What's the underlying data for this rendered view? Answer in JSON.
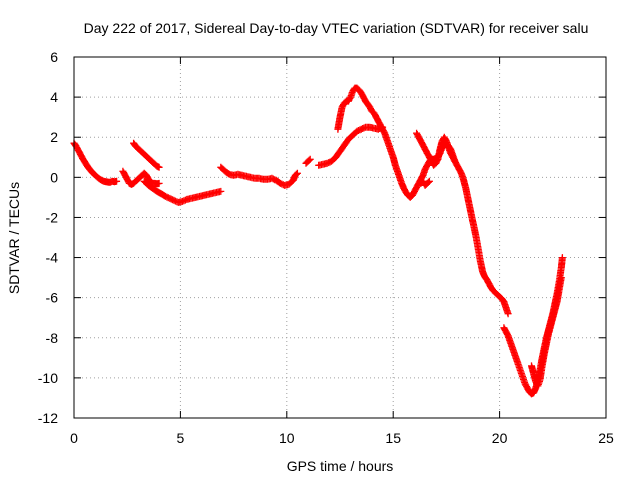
{
  "chart_data": {
    "type": "scatter",
    "title": "Day 222 of 2017, Sidereal Day-to-day VTEC variation (SDTVAR) for receiver salu",
    "xlabel": "GPS time / hours",
    "ylabel": "SDTVAR / TECUs",
    "xlim": [
      0,
      25
    ],
    "ylim": [
      -12,
      6
    ],
    "xticks": [
      0,
      5,
      10,
      15,
      20,
      25
    ],
    "yticks": [
      -12,
      -10,
      -8,
      -6,
      -4,
      -2,
      0,
      2,
      4,
      6
    ],
    "xtick_labels": [
      "0",
      "5",
      "10",
      "15",
      "20",
      "25"
    ],
    "ytick_labels": [
      "-12",
      "-10",
      "-8",
      "-6",
      "-4",
      "-2",
      "0",
      "2",
      "4",
      "6"
    ],
    "grid": true,
    "legend": "none",
    "marker": "plus",
    "color": "#ff0000",
    "series": [
      {
        "points": [
          [
            0.0,
            1.7
          ],
          [
            0.1,
            1.55
          ],
          [
            0.2,
            1.35
          ],
          [
            0.3,
            1.15
          ],
          [
            0.4,
            0.95
          ],
          [
            0.5,
            0.78
          ],
          [
            0.6,
            0.6
          ],
          [
            0.7,
            0.45
          ],
          [
            0.8,
            0.32
          ],
          [
            0.9,
            0.2
          ],
          [
            1.0,
            0.1
          ],
          [
            1.1,
            0.0
          ],
          [
            1.2,
            -0.08
          ],
          [
            1.3,
            -0.15
          ],
          [
            1.4,
            -0.2
          ],
          [
            1.5,
            -0.22
          ],
          [
            1.6,
            -0.24
          ],
          [
            1.7,
            -0.25
          ],
          [
            1.8,
            -0.2
          ],
          [
            1.9,
            -0.22
          ],
          [
            2.0,
            -0.2
          ]
        ]
      },
      {
        "points": [
          [
            2.3,
            0.3
          ],
          [
            2.4,
            0.1
          ],
          [
            2.5,
            -0.1
          ],
          [
            2.6,
            -0.3
          ],
          [
            2.7,
            -0.35
          ],
          [
            2.8,
            -0.3
          ],
          [
            2.9,
            -0.2
          ],
          [
            3.0,
            -0.1
          ],
          [
            3.1,
            0.0
          ],
          [
            3.2,
            0.1
          ],
          [
            3.3,
            0.2
          ],
          [
            3.4,
            0.1
          ],
          [
            3.5,
            -0.1
          ],
          [
            3.6,
            -0.25
          ],
          [
            3.7,
            -0.3
          ],
          [
            3.8,
            -0.3
          ],
          [
            3.9,
            -0.32
          ],
          [
            4.0,
            -0.3
          ]
        ]
      },
      {
        "points": [
          [
            2.8,
            1.7
          ],
          [
            2.9,
            1.55
          ],
          [
            3.0,
            1.45
          ],
          [
            3.1,
            1.35
          ],
          [
            3.2,
            1.25
          ],
          [
            3.3,
            1.15
          ],
          [
            3.4,
            1.05
          ],
          [
            3.5,
            0.95
          ],
          [
            3.6,
            0.85
          ],
          [
            3.7,
            0.75
          ],
          [
            3.8,
            0.65
          ],
          [
            3.9,
            0.55
          ],
          [
            4.0,
            0.5
          ]
        ]
      },
      {
        "points": [
          [
            3.3,
            -0.2
          ],
          [
            3.5,
            -0.4
          ],
          [
            3.7,
            -0.55
          ],
          [
            3.9,
            -0.7
          ],
          [
            4.1,
            -0.82
          ],
          [
            4.3,
            -0.95
          ],
          [
            4.5,
            -1.05
          ],
          [
            4.7,
            -1.15
          ],
          [
            4.9,
            -1.25
          ],
          [
            5.1,
            -1.2
          ],
          [
            5.3,
            -1.1
          ],
          [
            5.5,
            -1.05
          ],
          [
            5.7,
            -1.0
          ],
          [
            5.9,
            -0.95
          ],
          [
            6.1,
            -0.9
          ],
          [
            6.3,
            -0.85
          ],
          [
            6.5,
            -0.8
          ],
          [
            6.7,
            -0.75
          ],
          [
            6.9,
            -0.7
          ]
        ]
      },
      {
        "points": [
          [
            6.9,
            0.5
          ],
          [
            7.1,
            0.3
          ],
          [
            7.3,
            0.15
          ],
          [
            7.5,
            0.1
          ],
          [
            7.7,
            0.15
          ],
          [
            7.9,
            0.1
          ],
          [
            8.1,
            0.05
          ],
          [
            8.3,
            0.0
          ],
          [
            8.5,
            -0.05
          ],
          [
            8.7,
            -0.05
          ],
          [
            8.9,
            -0.1
          ],
          [
            9.1,
            -0.1
          ],
          [
            9.3,
            -0.05
          ],
          [
            9.5,
            -0.15
          ],
          [
            9.7,
            -0.3
          ],
          [
            9.9,
            -0.4
          ],
          [
            10.1,
            -0.35
          ],
          [
            10.3,
            -0.15
          ],
          [
            10.4,
            0.1
          ],
          [
            10.5,
            0.2
          ]
        ]
      },
      {
        "points": [
          [
            10.9,
            0.7
          ],
          [
            11.0,
            0.8
          ],
          [
            11.1,
            0.9
          ]
        ]
      },
      {
        "points": [
          [
            11.5,
            0.6
          ],
          [
            11.7,
            0.65
          ],
          [
            11.9,
            0.7
          ],
          [
            12.1,
            0.8
          ],
          [
            12.3,
            1.0
          ],
          [
            12.5,
            1.3
          ],
          [
            12.7,
            1.6
          ],
          [
            12.9,
            1.9
          ],
          [
            13.1,
            2.1
          ],
          [
            13.3,
            2.3
          ],
          [
            13.5,
            2.4
          ],
          [
            13.7,
            2.5
          ],
          [
            13.9,
            2.5
          ],
          [
            14.1,
            2.45
          ],
          [
            14.3,
            2.4
          ],
          [
            14.5,
            2.5
          ]
        ]
      },
      {
        "points": [
          [
            12.4,
            2.4
          ],
          [
            12.5,
            3.0
          ],
          [
            12.6,
            3.5
          ],
          [
            12.7,
            3.7
          ],
          [
            12.8,
            3.8
          ],
          [
            12.9,
            3.8
          ],
          [
            13.0,
            4.0
          ],
          [
            13.1,
            4.3
          ],
          [
            13.2,
            4.45
          ],
          [
            13.3,
            4.45
          ],
          [
            13.4,
            4.35
          ],
          [
            13.5,
            4.2
          ],
          [
            13.6,
            4.0
          ],
          [
            13.7,
            3.8
          ],
          [
            13.8,
            3.65
          ],
          [
            13.9,
            3.5
          ],
          [
            14.0,
            3.3
          ],
          [
            14.1,
            3.2
          ],
          [
            14.2,
            3.0
          ],
          [
            14.3,
            2.8
          ],
          [
            14.4,
            2.6
          ],
          [
            14.5,
            2.4
          ],
          [
            14.6,
            2.2
          ],
          [
            14.7,
            1.9
          ],
          [
            14.8,
            1.6
          ],
          [
            14.9,
            1.3
          ],
          [
            15.0,
            1.0
          ],
          [
            15.1,
            0.6
          ],
          [
            15.2,
            0.3
          ],
          [
            15.3,
            0.0
          ],
          [
            15.4,
            -0.3
          ],
          [
            15.5,
            -0.55
          ],
          [
            15.6,
            -0.75
          ],
          [
            15.7,
            -0.9
          ],
          [
            15.8,
            -1.0
          ],
          [
            15.9,
            -0.9
          ],
          [
            16.0,
            -0.7
          ],
          [
            16.1,
            -0.5
          ],
          [
            16.2,
            -0.3
          ],
          [
            16.3,
            -0.1
          ],
          [
            16.4,
            0.1
          ],
          [
            16.5,
            0.4
          ],
          [
            16.6,
            0.6
          ],
          [
            16.7,
            0.8
          ],
          [
            16.8,
            0.9
          ],
          [
            16.9,
            0.9
          ],
          [
            17.0,
            0.95
          ],
          [
            17.1,
            1.0
          ],
          [
            17.2,
            1.2
          ],
          [
            17.3,
            1.5
          ],
          [
            17.4,
            1.6
          ],
          [
            17.5,
            1.65
          ],
          [
            17.6,
            1.55
          ],
          [
            17.7,
            1.4
          ],
          [
            17.8,
            1.1
          ],
          [
            17.9,
            0.8
          ],
          [
            18.0,
            0.6
          ],
          [
            18.1,
            0.4
          ],
          [
            18.2,
            0.2
          ],
          [
            18.3,
            -0.1
          ],
          [
            18.4,
            -0.5
          ],
          [
            18.5,
            -1.0
          ],
          [
            18.6,
            -1.5
          ],
          [
            18.7,
            -2.0
          ],
          [
            18.8,
            -2.5
          ],
          [
            18.9,
            -3.0
          ],
          [
            19.0,
            -3.6
          ],
          [
            19.1,
            -4.2
          ],
          [
            19.2,
            -4.7
          ],
          [
            19.3,
            -4.95
          ],
          [
            19.4,
            -5.1
          ],
          [
            19.5,
            -5.3
          ],
          [
            19.6,
            -5.5
          ],
          [
            19.7,
            -5.65
          ],
          [
            19.8,
            -5.75
          ],
          [
            19.9,
            -5.85
          ],
          [
            20.0,
            -5.95
          ],
          [
            20.1,
            -6.05
          ],
          [
            20.2,
            -6.2
          ],
          [
            20.3,
            -6.5
          ],
          [
            20.4,
            -6.8
          ]
        ]
      },
      {
        "points": [
          [
            16.1,
            2.2
          ],
          [
            16.2,
            2.0
          ],
          [
            16.3,
            1.8
          ],
          [
            16.4,
            1.6
          ],
          [
            16.5,
            1.4
          ],
          [
            16.6,
            1.2
          ],
          [
            16.7,
            1.0
          ],
          [
            16.8,
            0.8
          ],
          [
            16.9,
            0.6
          ],
          [
            17.0,
            0.7
          ],
          [
            17.1,
            0.9
          ],
          [
            17.2,
            1.4
          ],
          [
            17.3,
            1.8
          ],
          [
            17.4,
            2.0
          ],
          [
            17.5,
            1.8
          ],
          [
            17.6,
            1.5
          ],
          [
            17.7,
            1.2
          ],
          [
            17.8,
            1.0
          ],
          [
            17.9,
            0.8
          ]
        ]
      },
      {
        "points": [
          [
            16.3,
            -0.3
          ],
          [
            16.4,
            -0.2
          ],
          [
            16.5,
            -0.4
          ],
          [
            16.6,
            -0.3
          ],
          [
            16.7,
            -0.2
          ]
        ]
      },
      {
        "points": [
          [
            20.2,
            -7.5
          ],
          [
            20.3,
            -7.7
          ],
          [
            20.4,
            -7.9
          ],
          [
            20.5,
            -8.2
          ],
          [
            20.6,
            -8.5
          ],
          [
            20.7,
            -8.8
          ],
          [
            20.8,
            -9.1
          ],
          [
            20.9,
            -9.4
          ],
          [
            21.0,
            -9.7
          ],
          [
            21.1,
            -10.0
          ],
          [
            21.2,
            -10.3
          ],
          [
            21.3,
            -10.5
          ],
          [
            21.4,
            -10.7
          ],
          [
            21.5,
            -10.8
          ],
          [
            21.6,
            -10.75
          ],
          [
            21.7,
            -10.5
          ],
          [
            21.8,
            -10.1
          ],
          [
            21.9,
            -9.6
          ],
          [
            22.0,
            -9.0
          ],
          [
            22.1,
            -8.5
          ],
          [
            22.2,
            -8.0
          ],
          [
            22.3,
            -7.6
          ],
          [
            22.4,
            -7.2
          ],
          [
            22.5,
            -6.8
          ],
          [
            22.6,
            -6.3
          ],
          [
            22.7,
            -5.8
          ],
          [
            22.8,
            -5.2
          ],
          [
            22.9,
            -4.5
          ],
          [
            22.95,
            -4.0
          ]
        ]
      },
      {
        "points": [
          [
            21.5,
            -9.4
          ],
          [
            21.6,
            -9.8
          ],
          [
            21.7,
            -10.2
          ],
          [
            21.8,
            -10.4
          ],
          [
            21.9,
            -10.1
          ],
          [
            22.0,
            -9.4
          ],
          [
            22.1,
            -8.8
          ],
          [
            22.2,
            -8.3
          ],
          [
            22.3,
            -7.8
          ],
          [
            22.4,
            -7.4
          ],
          [
            22.5,
            -7.0
          ],
          [
            22.6,
            -6.6
          ],
          [
            22.7,
            -6.2
          ],
          [
            22.8,
            -5.6
          ],
          [
            22.9,
            -5.0
          ]
        ]
      }
    ]
  }
}
